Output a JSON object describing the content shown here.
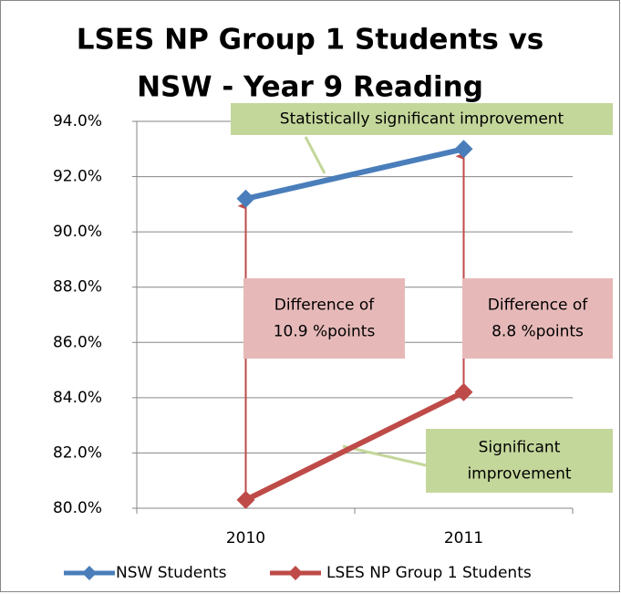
{
  "chart_data": {
    "type": "line",
    "title_lines": [
      "LSES NP Group 1 Students vs",
      "NSW - Year 9 Reading"
    ],
    "categories": [
      "2010",
      "2011"
    ],
    "series": [
      {
        "name": "NSW Students",
        "color": "#4a7ebb",
        "values": [
          91.2,
          93.0
        ]
      },
      {
        "name": "LSES NP Group 1 Students",
        "color": "#be4b48",
        "values": [
          80.3,
          84.2
        ]
      }
    ],
    "ylim": [
      80,
      94
    ],
    "yticks": [
      {
        "value": 80,
        "label": "80.0%"
      },
      {
        "value": 82,
        "label": "82.0%"
      },
      {
        "value": 84,
        "label": "84.0%"
      },
      {
        "value": 86,
        "label": "86.0%"
      },
      {
        "value": 88,
        "label": "88.0%"
      },
      {
        "value": 90,
        "label": "90.0%"
      },
      {
        "value": 92,
        "label": "92.0%"
      },
      {
        "value": 94,
        "label": "94.0%"
      }
    ],
    "grid": true,
    "legend": "bottom",
    "annotations": [
      {
        "lines": [
          "Statistically significant improvement"
        ],
        "color": "#c4d79b"
      },
      {
        "lines": [
          "Difference of",
          "10.9 %points"
        ],
        "color": "#e6b9b8"
      },
      {
        "lines": [
          "Difference of",
          "8.8 %points"
        ],
        "color": "#e6b9b8"
      },
      {
        "lines": [
          "Significant",
          "improvement"
        ],
        "color": "#c4d79b"
      }
    ]
  }
}
